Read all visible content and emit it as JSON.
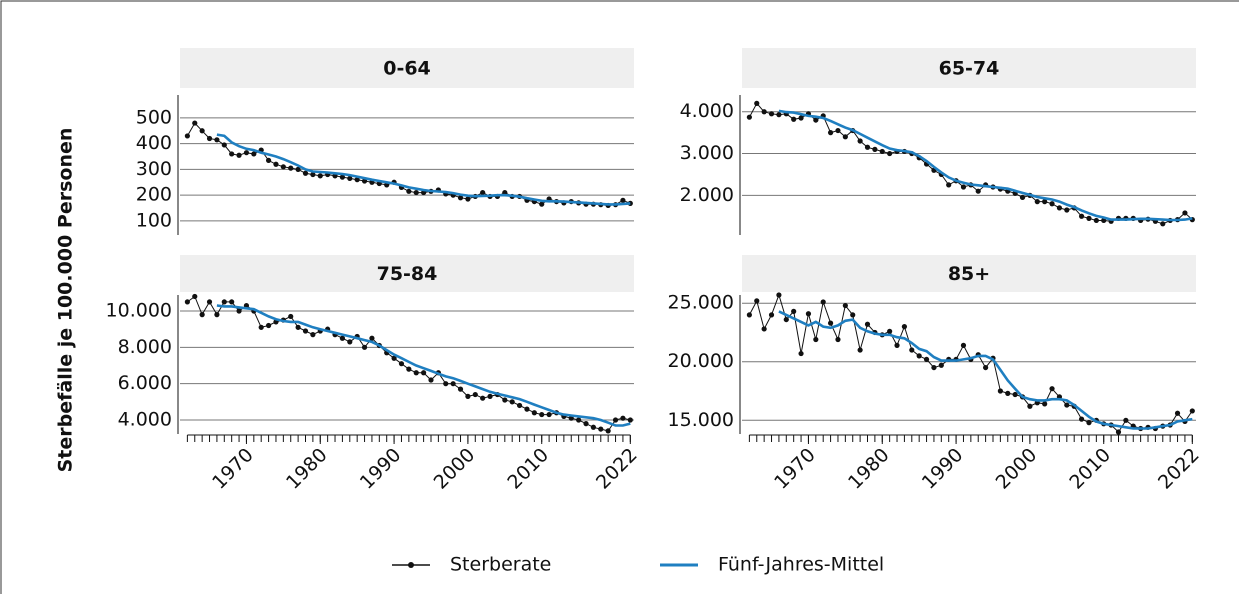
{
  "chart_data": [
    {
      "type": "line",
      "title": "0-64",
      "ylabel": "Sterbefälle je 100.000 Personen",
      "x": [
        1962,
        1963,
        1964,
        1965,
        1966,
        1967,
        1968,
        1969,
        1970,
        1971,
        1972,
        1973,
        1974,
        1975,
        1976,
        1977,
        1978,
        1979,
        1980,
        1981,
        1982,
        1983,
        1984,
        1985,
        1986,
        1987,
        1988,
        1989,
        1990,
        1991,
        1992,
        1993,
        1994,
        1995,
        1996,
        1997,
        1998,
        1999,
        2000,
        2001,
        2002,
        2003,
        2004,
        2005,
        2006,
        2007,
        2008,
        2009,
        2010,
        2011,
        2012,
        2013,
        2014,
        2015,
        2016,
        2017,
        2018,
        2019,
        2020,
        2021,
        2022
      ],
      "xlim": [
        1961,
        2022.5
      ],
      "ylim": [
        53,
        589
      ],
      "yticks": [
        100,
        200,
        300,
        400,
        500
      ],
      "series": [
        {
          "name": "Sterberate",
          "color": "#111111",
          "values": [
            430,
            480,
            450,
            420,
            415,
            395,
            360,
            355,
            365,
            360,
            375,
            335,
            320,
            310,
            305,
            300,
            285,
            280,
            275,
            280,
            275,
            270,
            265,
            260,
            255,
            250,
            245,
            240,
            250,
            230,
            215,
            210,
            210,
            215,
            220,
            205,
            200,
            190,
            185,
            195,
            210,
            195,
            195,
            210,
            195,
            195,
            180,
            175,
            165,
            185,
            175,
            170,
            175,
            170,
            165,
            165,
            163,
            160,
            163,
            180,
            168
          ]
        },
        {
          "name": "Fünf-Jahres-Mittel",
          "color": "#1f7fc1",
          "values": [
            null,
            null,
            null,
            null,
            435,
            430,
            405,
            390,
            380,
            375,
            365,
            358,
            350,
            340,
            328,
            315,
            300,
            292,
            290,
            288,
            285,
            282,
            278,
            272,
            266,
            260,
            255,
            250,
            245,
            238,
            230,
            225,
            220,
            216,
            214,
            212,
            208,
            202,
            198,
            196,
            197,
            198,
            200,
            200,
            198,
            194,
            188,
            183,
            178,
            176,
            176,
            175,
            173,
            172,
            170,
            168,
            166,
            164,
            164,
            166,
            168
          ]
        }
      ]
    },
    {
      "type": "line",
      "title": "65-74",
      "x": [
        1962,
        1963,
        1964,
        1965,
        1966,
        1967,
        1968,
        1969,
        1970,
        1971,
        1972,
        1973,
        1974,
        1975,
        1976,
        1977,
        1978,
        1979,
        1980,
        1981,
        1982,
        1983,
        1984,
        1985,
        1986,
        1987,
        1988,
        1989,
        1990,
        1991,
        1992,
        1993,
        1994,
        1995,
        1996,
        1997,
        1998,
        1999,
        2000,
        2001,
        2002,
        2003,
        2004,
        2005,
        2006,
        2007,
        2008,
        2009,
        2010,
        2011,
        2012,
        2013,
        2014,
        2015,
        2016,
        2017,
        2018,
        2019,
        2020,
        2021,
        2022
      ],
      "xlim": [
        1961,
        2022.5
      ],
      "ylim": [
        1100,
        4400
      ],
      "yticks": [
        {
          "value": 2000,
          "label": "2.000"
        },
        {
          "value": 3000,
          "label": "3.000"
        },
        {
          "value": 4000,
          "label": "4.000"
        }
      ],
      "series": [
        {
          "color": "#111111",
          "values": [
            3870,
            4200,
            4000,
            3950,
            3930,
            3950,
            3820,
            3850,
            3950,
            3800,
            3900,
            3500,
            3550,
            3400,
            3550,
            3300,
            3150,
            3100,
            3050,
            3000,
            3050,
            3050,
            3000,
            2900,
            2750,
            2600,
            2500,
            2250,
            2350,
            2200,
            2250,
            2100,
            2250,
            2200,
            2150,
            2100,
            2050,
            1950,
            2000,
            1850,
            1850,
            1800,
            1700,
            1650,
            1700,
            1500,
            1450,
            1400,
            1400,
            1380,
            1450,
            1450,
            1450,
            1400,
            1430,
            1380,
            1320,
            1400,
            1420,
            1580,
            1420
          ]
        },
        {
          "color": "#1f7fc1",
          "values": [
            null,
            null,
            null,
            null,
            4020,
            3990,
            3980,
            3940,
            3900,
            3880,
            3850,
            3780,
            3700,
            3620,
            3560,
            3470,
            3380,
            3290,
            3200,
            3120,
            3080,
            3060,
            3030,
            2940,
            2820,
            2680,
            2550,
            2430,
            2350,
            2300,
            2260,
            2240,
            2220,
            2200,
            2180,
            2160,
            2110,
            2060,
            2010,
            1960,
            1930,
            1900,
            1850,
            1780,
            1720,
            1640,
            1570,
            1510,
            1470,
            1420,
            1420,
            1420,
            1430,
            1440,
            1440,
            1430,
            1420,
            1410,
            1410,
            1420,
            1450
          ]
        }
      ]
    },
    {
      "type": "line",
      "title": "75-84",
      "x": [
        1962,
        1963,
        1964,
        1965,
        1966,
        1967,
        1968,
        1969,
        1970,
        1971,
        1972,
        1973,
        1974,
        1975,
        1976,
        1977,
        1978,
        1979,
        1980,
        1981,
        1982,
        1983,
        1984,
        1985,
        1986,
        1987,
        1988,
        1989,
        1990,
        1991,
        1992,
        1993,
        1994,
        1995,
        1996,
        1997,
        1998,
        1999,
        2000,
        2001,
        2002,
        2003,
        2004,
        2005,
        2006,
        2007,
        2008,
        2009,
        2010,
        2011,
        2012,
        2013,
        2014,
        2015,
        2016,
        2017,
        2018,
        2019,
        2020,
        2021,
        2022
      ],
      "xlim": [
        1961,
        2022.5
      ],
      "xticks": [
        1970,
        1980,
        1990,
        2000,
        2010,
        2022
      ],
      "ylim": [
        3340,
        10880
      ],
      "yticks": [
        {
          "value": 4000,
          "label": "4.000"
        },
        {
          "value": 6000,
          "label": "6.000"
        },
        {
          "value": 8000,
          "label": "8.000"
        },
        {
          "value": 10000,
          "label": "10.000"
        }
      ],
      "series": [
        {
          "color": "#111111",
          "values": [
            10500,
            10800,
            9800,
            10500,
            9800,
            10500,
            10500,
            10000,
            10300,
            10000,
            9100,
            9200,
            9400,
            9500,
            9700,
            9100,
            8900,
            8700,
            8900,
            9000,
            8700,
            8500,
            8300,
            8600,
            8000,
            8500,
            8100,
            7700,
            7400,
            7100,
            6800,
            6600,
            6600,
            6200,
            6600,
            6000,
            6000,
            5700,
            5300,
            5400,
            5200,
            5300,
            5400,
            5100,
            5000,
            4800,
            4600,
            4400,
            4300,
            4300,
            4400,
            4200,
            4100,
            4000,
            3800,
            3600,
            3500,
            3400,
            4000,
            4100,
            4000
          ]
        },
        {
          "color": "#1f7fc1",
          "values": [
            null,
            null,
            null,
            null,
            10300,
            10250,
            10250,
            10200,
            10150,
            10100,
            9900,
            9700,
            9550,
            9450,
            9400,
            9400,
            9250,
            9100,
            9000,
            8900,
            8800,
            8700,
            8600,
            8500,
            8400,
            8300,
            8100,
            7850,
            7600,
            7400,
            7200,
            7000,
            6850,
            6700,
            6550,
            6400,
            6300,
            6150,
            6000,
            5850,
            5700,
            5550,
            5450,
            5350,
            5250,
            5150,
            5000,
            4850,
            4700,
            4550,
            4400,
            4300,
            4250,
            4200,
            4150,
            4100,
            4000,
            3850,
            3700,
            3700,
            3800
          ]
        }
      ]
    },
    {
      "type": "line",
      "title": "85+",
      "x": [
        1962,
        1963,
        1964,
        1965,
        1966,
        1967,
        1968,
        1969,
        1970,
        1971,
        1972,
        1973,
        1974,
        1975,
        1976,
        1977,
        1978,
        1979,
        1980,
        1981,
        1982,
        1983,
        1984,
        1985,
        1986,
        1987,
        1988,
        1989,
        1990,
        1991,
        1992,
        1993,
        1994,
        1995,
        1996,
        1997,
        1998,
        1999,
        2000,
        2001,
        2002,
        2003,
        2004,
        2005,
        2006,
        2007,
        2008,
        2009,
        2010,
        2011,
        2012,
        2013,
        2014,
        2015,
        2016,
        2017,
        2018,
        2019,
        2020,
        2021,
        2022
      ],
      "xlim": [
        1961,
        2022.5
      ],
      "xticks": [
        1970,
        1980,
        1990,
        2000,
        2010,
        2022
      ],
      "ylim": [
        14000,
        25700
      ],
      "yticks": [
        {
          "value": 15000,
          "label": "15.000"
        },
        {
          "value": 20000,
          "label": "20.000"
        },
        {
          "value": 25000,
          "label": "25.000"
        }
      ],
      "series": [
        {
          "color": "#111111",
          "values": [
            24000,
            25200,
            22800,
            24000,
            25700,
            23600,
            24300,
            20700,
            24100,
            21900,
            25100,
            23300,
            21900,
            24800,
            24000,
            21000,
            23200,
            22500,
            22300,
            22600,
            21400,
            23000,
            21000,
            20500,
            20200,
            19500,
            19700,
            20200,
            20200,
            21400,
            20200,
            20600,
            19500,
            20300,
            17500,
            17300,
            17200,
            17000,
            16200,
            16500,
            16400,
            17700,
            17000,
            16300,
            16200,
            15100,
            14800,
            15000,
            14700,
            14600,
            14000,
            15000,
            14500,
            14300,
            14400,
            14300,
            14500,
            14600,
            15600,
            14900,
            15800
          ]
        },
        {
          "color": "#1f7fc1",
          "values": [
            null,
            null,
            null,
            null,
            24300,
            24000,
            23700,
            23400,
            23100,
            23400,
            23000,
            22900,
            23100,
            23500,
            23600,
            22900,
            22600,
            22400,
            22300,
            22300,
            22100,
            22000,
            21600,
            21100,
            20900,
            20400,
            20100,
            20100,
            20100,
            20200,
            20300,
            20500,
            20500,
            20200,
            19300,
            18400,
            17700,
            17000,
            16800,
            16700,
            16700,
            16800,
            16800,
            16700,
            16300,
            15800,
            15300,
            14900,
            14700,
            14600,
            14500,
            14400,
            14300,
            14300,
            14300,
            14400,
            14500,
            14600,
            14900,
            15000,
            15100
          ]
        }
      ]
    }
  ]
}
